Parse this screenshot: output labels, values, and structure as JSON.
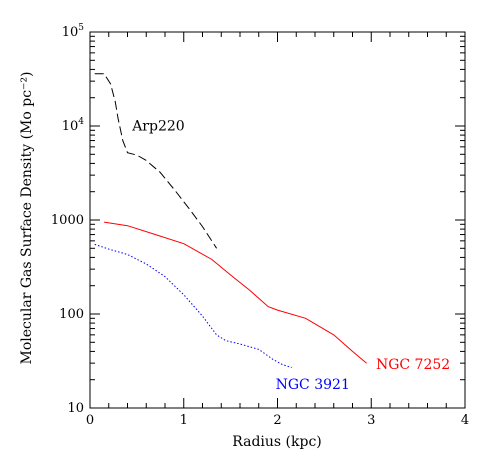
{
  "chart_data": {
    "type": "line",
    "xlabel": "Radius (kpc)",
    "ylabel": "Molecular Gas Surface Density (Mo pc⁻²)",
    "x_range": [
      0,
      4
    ],
    "y_range": [
      10,
      100000
    ],
    "y_scale": "log",
    "x_ticks": [
      "0",
      "1",
      "2",
      "3",
      "4"
    ],
    "y_tick_labels": [
      {
        "value": 10,
        "base": "10",
        "exp": ""
      },
      {
        "value": 100,
        "base": "100",
        "exp": ""
      },
      {
        "value": 1000,
        "base": "1000",
        "exp": ""
      },
      {
        "value": 10000,
        "base": "10",
        "exp": "4"
      },
      {
        "value": 100000,
        "base": "10",
        "exp": "5"
      }
    ],
    "grid": false,
    "series": [
      {
        "name": "Arp220",
        "color": "#000000",
        "style": "dashed",
        "points": [
          [
            0.05,
            36000
          ],
          [
            0.15,
            36000
          ],
          [
            0.22,
            28000
          ],
          [
            0.27,
            18000
          ],
          [
            0.3,
            12000
          ],
          [
            0.35,
            7000
          ],
          [
            0.4,
            5200
          ],
          [
            0.5,
            4900
          ],
          [
            0.6,
            4300
          ],
          [
            0.75,
            3200
          ],
          [
            0.9,
            2100
          ],
          [
            1.05,
            1350
          ],
          [
            1.2,
            850
          ],
          [
            1.35,
            500
          ]
        ]
      },
      {
        "name": "NGC 7252",
        "color": "#ff0000",
        "style": "solid",
        "points": [
          [
            0.15,
            950
          ],
          [
            0.4,
            870
          ],
          [
            0.7,
            700
          ],
          [
            1.0,
            560
          ],
          [
            1.3,
            380
          ],
          [
            1.5,
            260
          ],
          [
            1.7,
            180
          ],
          [
            1.9,
            120
          ],
          [
            2.0,
            110
          ],
          [
            2.3,
            90
          ],
          [
            2.6,
            60
          ],
          [
            2.8,
            40
          ],
          [
            2.95,
            30
          ]
        ]
      },
      {
        "name": "NGC 3921",
        "color": "#0000ff",
        "style": "dotted",
        "points": [
          [
            0.05,
            550
          ],
          [
            0.2,
            490
          ],
          [
            0.4,
            430
          ],
          [
            0.6,
            340
          ],
          [
            0.8,
            250
          ],
          [
            1.0,
            160
          ],
          [
            1.2,
            95
          ],
          [
            1.35,
            60
          ],
          [
            1.45,
            52
          ],
          [
            1.6,
            48
          ],
          [
            1.8,
            42
          ],
          [
            1.95,
            33
          ],
          [
            2.05,
            29
          ],
          [
            2.15,
            27
          ]
        ]
      }
    ],
    "annotations": [
      {
        "text": "Arp220",
        "color": "#000000",
        "x": 0.45,
        "y": 9000
      },
      {
        "text": "NGC 7252",
        "color": "#ff0000",
        "x": 3.05,
        "y": 26
      },
      {
        "text": "NGC 3921",
        "color": "#0000ff",
        "x": 1.98,
        "y": 16
      }
    ]
  }
}
